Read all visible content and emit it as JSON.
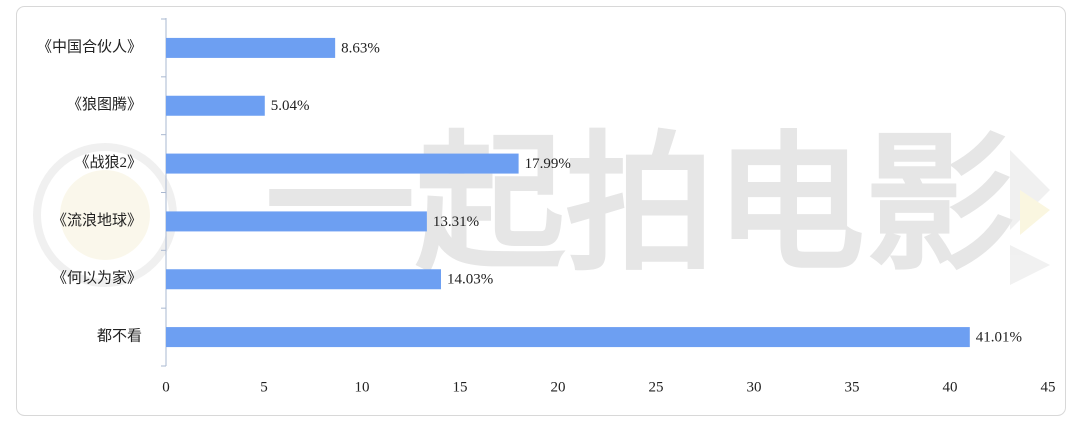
{
  "chart_data": {
    "type": "hbar",
    "watermark": "一起拍电影",
    "categories": [
      "《中国合伙人》",
      "《狼图腾》",
      "《战狼2》",
      "《流浪地球》",
      "《何以为家》",
      "都不看"
    ],
    "values": [
      8.63,
      5.04,
      17.99,
      13.31,
      14.03,
      41.01
    ],
    "value_labels": [
      "8.63%",
      "5.04%",
      "17.99%",
      "13.31%",
      "14.03%",
      "41.01%"
    ],
    "color": "#6d9ff2",
    "xlim": [
      0,
      45
    ],
    "xticks": [
      0,
      5,
      10,
      15,
      20,
      25,
      30,
      35,
      40,
      45
    ],
    "grid": false
  }
}
